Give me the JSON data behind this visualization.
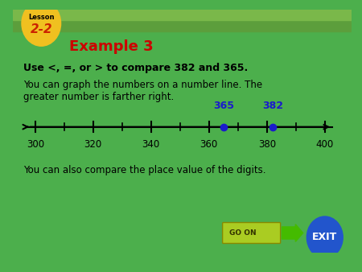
{
  "bg_green": "#4caf4c",
  "white_bg": "#ffffff",
  "header_green": "#5a9a3a",
  "lesson_label": "Lesson",
  "lesson_number": "2-2",
  "badge_yellow": "#f0c020",
  "example_title": "Example 3",
  "example_title_color": "#cc0000",
  "bold_text": "Use <, =, or > to compare 382 and 365.",
  "body_text1a": "You can graph the numbers on a number line. The",
  "body_text1b": "greater number is farther right.",
  "body_text2": "You can also compare the place value of the digits.",
  "nl_min": 300,
  "nl_max": 400,
  "nl_major_ticks": [
    300,
    320,
    340,
    360,
    380,
    400
  ],
  "nl_minor_ticks": [
    310,
    330,
    350,
    370,
    390
  ],
  "point1": 365,
  "point2": 382,
  "point_color": "#1a1acc",
  "label_color": "#1a1acc",
  "goon_text": "GO ON",
  "goon_bg": "#aacc00",
  "goon_arrow": "#44aa00",
  "exit_text": "EXIT",
  "exit_bg": "#2255cc",
  "text_color": "#000000",
  "border_color": "#3a7a3a"
}
